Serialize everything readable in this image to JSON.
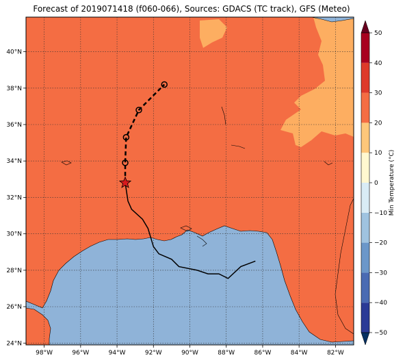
{
  "title": "Forecast of 2019071418 (f060-066), Sources: GDACS (TC track), GFS (Meteo)",
  "x_ticks": [
    "98°W",
    "96°W",
    "94°W",
    "92°W",
    "90°W",
    "88°W",
    "86°W",
    "84°W",
    "82°W"
  ],
  "y_ticks": [
    "24°N",
    "26°N",
    "28°N",
    "30°N",
    "32°N",
    "34°N",
    "36°N",
    "38°N",
    "40°N"
  ],
  "colorbar": {
    "label": "Min Temperature (°C)",
    "ticks": [
      "−50",
      "−40",
      "−30",
      "−20",
      "−10",
      "0",
      "10",
      "20",
      "30",
      "40",
      "50"
    ]
  },
  "colors": {
    "land_20_30": "#f46d43",
    "land_10_20": "#fdae61",
    "sea": "#8fb3d8",
    "track": "#000000",
    "star": "#d7191c"
  },
  "track": {
    "past": [
      [
        -86.4,
        28.5
      ],
      [
        -87.2,
        28.2
      ],
      [
        -87.9,
        27.55
      ],
      [
        -88.4,
        27.8
      ],
      [
        -89.0,
        27.8
      ],
      [
        -89.6,
        28.0
      ],
      [
        -90.6,
        28.2
      ],
      [
        -91.0,
        28.6
      ],
      [
        -91.7,
        28.9
      ],
      [
        -92.0,
        29.3
      ],
      [
        -92.3,
        30.3
      ],
      [
        -92.6,
        30.8
      ],
      [
        -93.2,
        31.35
      ],
      [
        -93.4,
        31.8
      ],
      [
        -93.55,
        32.8
      ]
    ],
    "forecast": [
      [
        -93.55,
        32.8
      ],
      [
        -93.55,
        33.9
      ],
      [
        -93.5,
        35.3
      ],
      [
        -92.8,
        36.8
      ],
      [
        -91.4,
        38.2
      ]
    ],
    "current": [
      -93.55,
      32.8
    ],
    "forecast_points": [
      [
        -93.55,
        33.9
      ],
      [
        -93.5,
        35.3
      ],
      [
        -92.8,
        36.8
      ],
      [
        -91.4,
        38.2
      ]
    ]
  },
  "extent": {
    "lon": [
      -99.0,
      -81.0
    ],
    "lat": [
      23.9,
      41.9
    ]
  }
}
